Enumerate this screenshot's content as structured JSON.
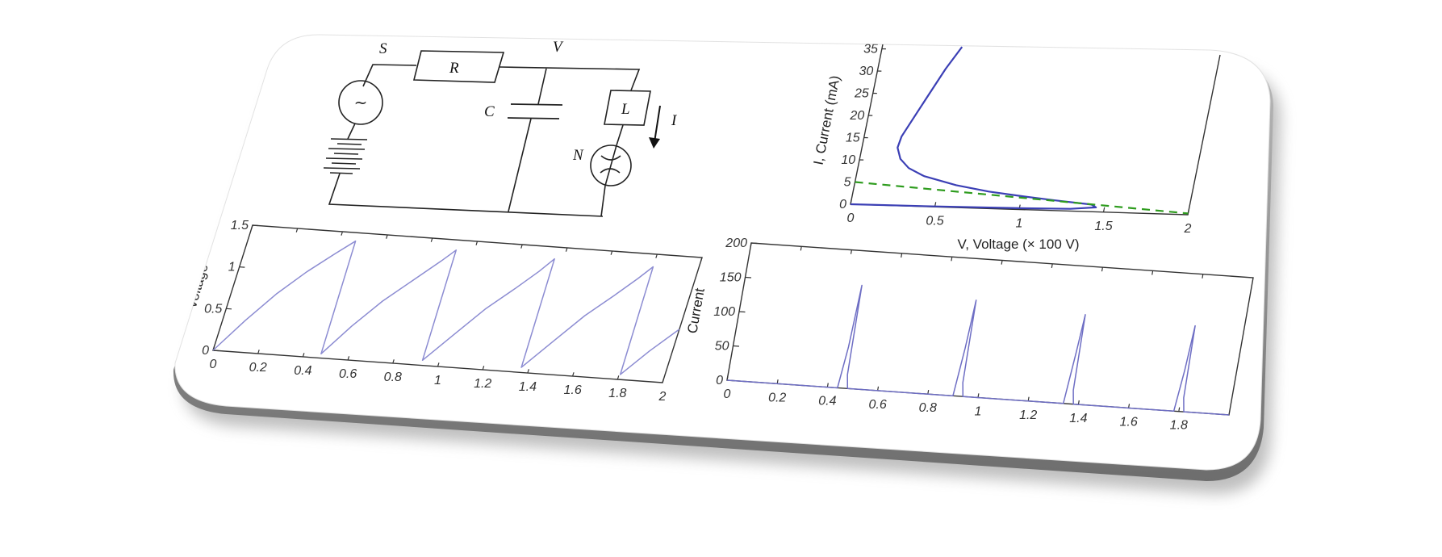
{
  "diagram": {
    "labels": {
      "source": "S",
      "resistor": "R",
      "node": "V",
      "capacitor": "C",
      "inductor": "L",
      "lamp": "N",
      "current": "I"
    },
    "source_symbol": "~"
  },
  "chart_data": [
    {
      "id": "iv",
      "type": "line",
      "xlabel": "V, Voltage (× 100 V)",
      "ylabel": "I, Current (mA)",
      "xlim": [
        0,
        2
      ],
      "ylim": [
        0,
        36
      ],
      "xticks": [
        0,
        0.5,
        1,
        1.5,
        2
      ],
      "yticks": [
        0,
        5,
        10,
        15,
        20,
        25,
        30,
        35
      ],
      "grid": false,
      "series": [
        {
          "style": "solid",
          "color": "#3b3fb5",
          "x": [
            0,
            0.5,
            1.0,
            1.3,
            1.45,
            1.42,
            1.2,
            1.0,
            0.8,
            0.6,
            0.4,
            0.3,
            0.24,
            0.21,
            0.22,
            0.26,
            0.33,
            0.4,
            0.47
          ],
          "y": [
            0,
            0.1,
            0.3,
            0.5,
            1.0,
            1.6,
            2.3,
            3.0,
            3.8,
            5.0,
            6.8,
            8.5,
            10.5,
            13,
            15.5,
            19,
            25,
            31,
            36
          ]
        },
        {
          "style": "dashed",
          "color": "#2e9c1e",
          "x": [
            0,
            2
          ],
          "y": [
            5,
            0.3
          ]
        }
      ]
    },
    {
      "id": "voltage",
      "type": "line",
      "xlabel": "",
      "ylabel": "Voltage",
      "xlim": [
        0,
        2
      ],
      "ylim": [
        0,
        1.5
      ],
      "xticks": [
        0,
        0.2,
        0.4,
        0.6,
        0.8,
        1,
        1.2,
        1.4,
        1.6,
        1.8,
        2
      ],
      "yticks": [
        0,
        0.5,
        1,
        1.5
      ],
      "grid": false,
      "series": [
        {
          "style": "solid",
          "color": "#8c8cd2",
          "x": [
            0,
            0.1,
            0.2,
            0.3,
            0.4,
            0.47,
            0.475,
            0.57,
            0.67,
            0.77,
            0.87,
            0.92,
            0.925,
            1.03,
            1.13,
            1.23,
            1.31,
            1.36,
            1.365,
            1.47,
            1.57,
            1.67,
            1.75,
            1.8,
            1.805,
            1.9,
            2.0
          ],
          "y": [
            0,
            0.38,
            0.72,
            1.0,
            1.24,
            1.4,
            0.05,
            0.4,
            0.72,
            0.98,
            1.24,
            1.38,
            0.06,
            0.4,
            0.72,
            0.98,
            1.2,
            1.36,
            0.06,
            0.4,
            0.72,
            0.98,
            1.2,
            1.35,
            0.06,
            0.36,
            0.64
          ]
        }
      ]
    },
    {
      "id": "current",
      "type": "line",
      "xlabel": "",
      "ylabel": "Current",
      "xlim": [
        0,
        2
      ],
      "ylim": [
        0,
        200
      ],
      "xticks": [
        0,
        0.2,
        0.4,
        0.6,
        0.8,
        1,
        1.2,
        1.4,
        1.6,
        1.8
      ],
      "yticks": [
        0,
        50,
        100,
        150,
        200
      ],
      "grid": false,
      "series": [
        {
          "style": "solid",
          "color": "#6e6ec4",
          "x": [
            0,
            0.44,
            0.455,
            0.465,
            0.47,
            0.48,
            0.9,
            0.915,
            0.925,
            0.93,
            0.94,
            1.34,
            1.355,
            1.365,
            1.37,
            1.38,
            1.78,
            1.795,
            1.805,
            1.81,
            1.82,
            2
          ],
          "y": [
            0,
            0,
            60,
            150,
            20,
            0,
            0,
            70,
            140,
            20,
            0,
            0,
            75,
            130,
            20,
            0,
            0,
            60,
            125,
            20,
            0,
            0
          ]
        }
      ]
    }
  ]
}
